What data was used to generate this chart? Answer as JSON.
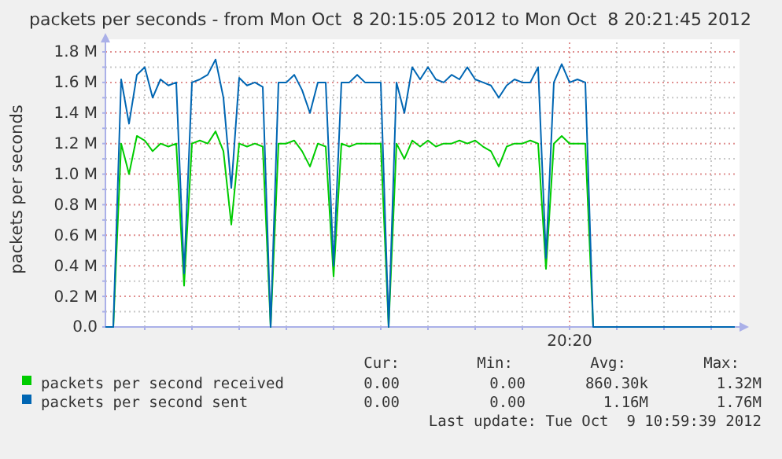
{
  "chart_data": {
    "type": "line",
    "title": "packets per seconds - from Mon Oct  8 20:15:05 2012 to Mon Oct  8 20:21:45 2012",
    "ylabel": "packets per seconds",
    "categories": [
      null,
      null,
      null,
      null,
      null,
      null,
      null,
      null,
      null,
      null,
      null,
      null,
      null,
      null,
      null,
      null,
      null,
      null,
      null,
      null,
      null,
      null,
      null,
      null,
      null,
      null,
      null,
      null,
      null,
      null,
      null,
      null,
      null,
      null,
      null,
      null,
      null,
      null,
      null,
      null,
      null,
      null,
      null,
      null,
      null,
      null,
      null,
      null,
      null,
      null,
      null,
      null,
      null,
      null,
      null,
      null,
      null,
      null,
      null,
      "20:20",
      null,
      null,
      null,
      null,
      null,
      null,
      null,
      null,
      null,
      null,
      null,
      null,
      null,
      null,
      null,
      null,
      null,
      null,
      null,
      null,
      null
    ],
    "series": [
      {
        "name": "packets per second received",
        "color": "#00cc00",
        "values": [
          0,
          0,
          1200000.0,
          1000000.0,
          1250000.0,
          1220000.0,
          1150000.0,
          1200000.0,
          1180000.0,
          1200000.0,
          270000.0,
          1200000.0,
          1220000.0,
          1200000.0,
          1280000.0,
          1150000.0,
          670000.0,
          1200000.0,
          1180000.0,
          1200000.0,
          1180000.0,
          0,
          1200000.0,
          1200000.0,
          1220000.0,
          1150000.0,
          1050000.0,
          1200000.0,
          1180000.0,
          330000.0,
          1200000.0,
          1180000.0,
          1200000.0,
          1200000.0,
          1200000.0,
          1200000.0,
          0,
          1200000.0,
          1100000.0,
          1220000.0,
          1180000.0,
          1220000.0,
          1180000.0,
          1200000.0,
          1200000.0,
          1220000.0,
          1200000.0,
          1220000.0,
          1180000.0,
          1150000.0,
          1050000.0,
          1180000.0,
          1200000.0,
          1200000.0,
          1220000.0,
          1200000.0,
          380000.0,
          1200000.0,
          1250000.0,
          1200000.0,
          1200000.0,
          1200000.0,
          0,
          null,
          null,
          null,
          null,
          null,
          null,
          null,
          null,
          null,
          null,
          null,
          null,
          null,
          null,
          null,
          null,
          null,
          null
        ]
      },
      {
        "name": "packets per second sent",
        "color": "#0066b3",
        "values": [
          0,
          0,
          1620000.0,
          1330000.0,
          1650000.0,
          1700000.0,
          1500000.0,
          1620000.0,
          1580000.0,
          1600000.0,
          350000.0,
          1600000.0,
          1620000.0,
          1650000.0,
          1750000.0,
          1500000.0,
          910000.0,
          1630000.0,
          1580000.0,
          1600000.0,
          1570000.0,
          0,
          1600000.0,
          1600000.0,
          1650000.0,
          1550000.0,
          1400000.0,
          1600000.0,
          1600000.0,
          400000.0,
          1600000.0,
          1600000.0,
          1650000.0,
          1600000.0,
          1600000.0,
          1600000.0,
          0,
          1600000.0,
          1400000.0,
          1700000.0,
          1620000.0,
          1700000.0,
          1620000.0,
          1600000.0,
          1650000.0,
          1620000.0,
          1700000.0,
          1620000.0,
          1600000.0,
          1580000.0,
          1500000.0,
          1580000.0,
          1620000.0,
          1600000.0,
          1600000.0,
          1700000.0,
          450000.0,
          1600000.0,
          1720000.0,
          1600000.0,
          1620000.0,
          1600000.0,
          0,
          0,
          0,
          0,
          0,
          0,
          0,
          0,
          0,
          0,
          0,
          0,
          0,
          0,
          0,
          0,
          0,
          0,
          0
        ]
      }
    ],
    "ylim": [
      0,
      1800000.0
    ],
    "yticks": [
      {
        "value": 0,
        "label": "0.0"
      },
      {
        "value": 100000.0,
        "label": null
      },
      {
        "value": 200000.0,
        "label": "0.2 M"
      },
      {
        "value": 300000.0,
        "label": null
      },
      {
        "value": 400000.0,
        "label": "0.4 M"
      },
      {
        "value": 500000.0,
        "label": null
      },
      {
        "value": 600000.0,
        "label": "0.6 M"
      },
      {
        "value": 700000.0,
        "label": null
      },
      {
        "value": 800000.0,
        "label": "0.8 M"
      },
      {
        "value": 900000.0,
        "label": null
      },
      {
        "value": 1000000.0,
        "label": "1.0 M"
      },
      {
        "value": 1100000.0,
        "label": null
      },
      {
        "value": 1200000.0,
        "label": "1.2 M"
      },
      {
        "value": 1300000.0,
        "label": null
      },
      {
        "value": 1400000.0,
        "label": "1.4 M"
      },
      {
        "value": 1500000.0,
        "label": null
      },
      {
        "value": 1600000.0,
        "label": "1.6 M"
      },
      {
        "value": 1700000.0,
        "label": null
      },
      {
        "value": 1800000.0,
        "label": "1.8 M"
      }
    ],
    "grid": true,
    "legend": "bottom left",
    "marker": "none",
    "line_style": "solid",
    "annotations": [
      "Cur:",
      "Min:",
      "Avg:",
      "Max:",
      "0.00",
      "0.00",
      "860.30k",
      "1.32M",
      "0.00",
      "0.00",
      "1.16M",
      "1.76M",
      "Last update: Tue Oct  9 10:59:39 2012"
    ]
  }
}
